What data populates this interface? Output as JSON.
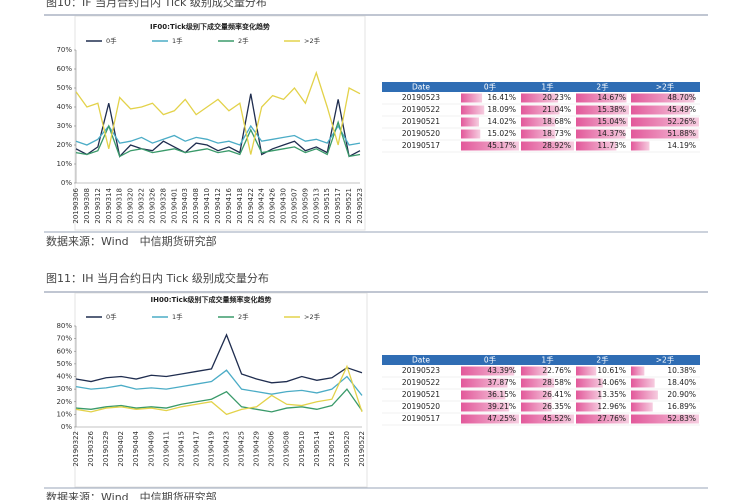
{
  "figures": [
    {
      "caption": "图10：IF 当月合约日内 Tick 级别成交量分布",
      "source": "数据来源：Wind　中信期货研究部"
    },
    {
      "caption": "图11：IH 当月合约日内 Tick 级别成交量分布",
      "source": "数据来源：Wind　中信期货研究部"
    }
  ],
  "chart_data": [
    {
      "type": "line",
      "title": "IF00:Tick级别下成交量频率变化趋势",
      "categories": [
        "20190306",
        "20190308",
        "20190312",
        "20190314",
        "20190318",
        "20190320",
        "20190322",
        "20190326",
        "20190328",
        "20190401",
        "20190403",
        "20190408",
        "20190410",
        "20190412",
        "20190416",
        "20190418",
        "20190422",
        "20190424",
        "20190426",
        "20190430",
        "20190507",
        "20190509",
        "20190513",
        "20190515",
        "20190517",
        "20190521",
        "20190523"
      ],
      "series": [
        {
          "name": "0手",
          "color": "#1f2d4f",
          "values": [
            18,
            15,
            19,
            42,
            14,
            20,
            18,
            17,
            22,
            19,
            16,
            21,
            20,
            17,
            19,
            16,
            47,
            15,
            18,
            20,
            22,
            17,
            19,
            16,
            44,
            14,
            17
          ]
        },
        {
          "name": "1手",
          "color": "#4bacc6",
          "values": [
            22,
            20,
            23,
            30,
            21,
            22,
            24,
            21,
            23,
            25,
            22,
            24,
            23,
            21,
            22,
            20,
            30,
            22,
            23,
            24,
            25,
            22,
            23,
            21,
            30,
            20,
            21
          ]
        },
        {
          "name": "2手",
          "color": "#3a9a6a",
          "values": [
            16,
            15,
            17,
            30,
            14,
            17,
            18,
            16,
            17,
            18,
            16,
            17,
            18,
            16,
            17,
            15,
            28,
            16,
            17,
            18,
            19,
            16,
            18,
            15,
            32,
            14,
            15
          ]
        },
        {
          "name": ">2手",
          "color": "#e3d24a",
          "values": [
            48,
            40,
            42,
            18,
            45,
            39,
            40,
            42,
            36,
            38,
            44,
            36,
            40,
            44,
            38,
            42,
            15,
            40,
            46,
            44,
            50,
            42,
            58,
            40,
            20,
            50,
            47
          ]
        }
      ],
      "ylim": [
        0,
        70
      ],
      "yticks": [
        {
          "value": 0,
          "label": "0%"
        },
        {
          "value": 10,
          "label": "10%"
        },
        {
          "value": 20,
          "label": "20%"
        },
        {
          "value": 30,
          "label": "30%"
        },
        {
          "value": 40,
          "label": "40%"
        },
        {
          "value": 50,
          "label": "50%"
        },
        {
          "value": 60,
          "label": "60%"
        },
        {
          "value": 70,
          "label": "70%"
        }
      ]
    },
    {
      "type": "line",
      "title": "IH00:Tick级别下成交量频率变化趋势",
      "categories": [
        "20190322",
        "20190326",
        "20190329",
        "20190402",
        "20190404",
        "20190409",
        "20190411",
        "20190415",
        "20190417",
        "20190419",
        "20190423",
        "20190425",
        "20190429",
        "20190506",
        "20190508",
        "20190510",
        "20190514",
        "20190516",
        "20190520",
        "20190522"
      ],
      "series": [
        {
          "name": "0手",
          "color": "#1f2d4f",
          "values": [
            38,
            36,
            39,
            40,
            38,
            41,
            40,
            42,
            44,
            46,
            73,
            42,
            38,
            35,
            36,
            40,
            37,
            39,
            47,
            43
          ]
        },
        {
          "name": "1手",
          "color": "#4bacc6",
          "values": [
            32,
            30,
            31,
            33,
            30,
            31,
            30,
            32,
            34,
            36,
            45,
            30,
            28,
            26,
            28,
            29,
            27,
            30,
            40,
            25
          ]
        },
        {
          "name": "2手",
          "color": "#3a9a6a",
          "values": [
            15,
            14,
            16,
            17,
            15,
            16,
            15,
            18,
            20,
            22,
            28,
            16,
            14,
            12,
            15,
            16,
            14,
            17,
            30,
            13
          ]
        },
        {
          "name": ">2手",
          "color": "#e3d24a",
          "values": [
            14,
            12,
            15,
            16,
            14,
            15,
            13,
            16,
            18,
            20,
            10,
            14,
            16,
            25,
            18,
            17,
            20,
            22,
            48,
            12
          ]
        }
      ],
      "ylim": [
        0,
        80
      ],
      "yticks": [
        {
          "value": 0,
          "label": "0%"
        },
        {
          "value": 10,
          "label": "10%"
        },
        {
          "value": 20,
          "label": "20%"
        },
        {
          "value": 30,
          "label": "30%"
        },
        {
          "value": 40,
          "label": "40%"
        },
        {
          "value": 50,
          "label": "50%"
        },
        {
          "value": 60,
          "label": "60%"
        },
        {
          "value": 70,
          "label": "70%"
        },
        {
          "value": 80,
          "label": "80%"
        }
      ]
    }
  ],
  "tables": [
    {
      "header": [
        "Date",
        "0手",
        "1手",
        "2手",
        ">2手"
      ],
      "rows": [
        [
          {
            "label": "20190523"
          },
          {
            "value": 16.41,
            "label": "16.41%"
          },
          {
            "value": 20.23,
            "label": "20.23%"
          },
          {
            "value": 14.67,
            "label": "14.67%"
          },
          {
            "value": 48.7,
            "label": "48.70%"
          }
        ],
        [
          {
            "label": "20190522"
          },
          {
            "value": 18.09,
            "label": "18.09%"
          },
          {
            "value": 21.04,
            "label": "21.04%"
          },
          {
            "value": 15.38,
            "label": "15.38%"
          },
          {
            "value": 45.49,
            "label": "45.49%"
          }
        ],
        [
          {
            "label": "20190521"
          },
          {
            "value": 14.02,
            "label": "14.02%"
          },
          {
            "value": 18.68,
            "label": "18.68%"
          },
          {
            "value": 15.04,
            "label": "15.04%"
          },
          {
            "value": 52.26,
            "label": "52.26%"
          }
        ],
        [
          {
            "label": "20190520"
          },
          {
            "value": 15.02,
            "label": "15.02%"
          },
          {
            "value": 18.73,
            "label": "18.73%"
          },
          {
            "value": 14.37,
            "label": "14.37%"
          },
          {
            "value": 51.88,
            "label": "51.88%"
          }
        ],
        [
          {
            "label": "20190517"
          },
          {
            "value": 45.17,
            "label": "45.17%"
          },
          {
            "value": 28.92,
            "label": "28.92%"
          },
          {
            "value": 11.73,
            "label": "11.73%"
          },
          {
            "value": 14.19,
            "label": "14.19%"
          }
        ]
      ]
    },
    {
      "header": [
        "Date",
        "0手",
        "1手",
        "2手",
        ">2手"
      ],
      "rows": [
        [
          {
            "label": "20190523"
          },
          {
            "value": 43.39,
            "label": "43.39%"
          },
          {
            "value": 22.76,
            "label": "22.76%"
          },
          {
            "value": 10.61,
            "label": "10.61%"
          },
          {
            "value": 10.38,
            "label": "10.38%"
          }
        ],
        [
          {
            "label": "20190522"
          },
          {
            "value": 37.87,
            "label": "37.87%"
          },
          {
            "value": 28.58,
            "label": "28.58%"
          },
          {
            "value": 14.06,
            "label": "14.06%"
          },
          {
            "value": 18.4,
            "label": "18.40%"
          }
        ],
        [
          {
            "label": "20190521"
          },
          {
            "value": 36.15,
            "label": "36.15%"
          },
          {
            "value": 26.41,
            "label": "26.41%"
          },
          {
            "value": 13.35,
            "label": "13.35%"
          },
          {
            "value": 20.9,
            "label": "20.90%"
          }
        ],
        [
          {
            "label": "20190520"
          },
          {
            "value": 39.21,
            "label": "39.21%"
          },
          {
            "value": 26.35,
            "label": "26.35%"
          },
          {
            "value": 12.96,
            "label": "12.96%"
          },
          {
            "value": 16.89,
            "label": "16.89%"
          }
        ],
        [
          {
            "label": "20190517"
          },
          {
            "value": 47.25,
            "label": "47.25%"
          },
          {
            "value": 45.52,
            "label": "45.52%"
          },
          {
            "value": 27.76,
            "label": "27.76%"
          },
          {
            "value": 52.83,
            "label": "52.83%"
          }
        ]
      ]
    }
  ]
}
